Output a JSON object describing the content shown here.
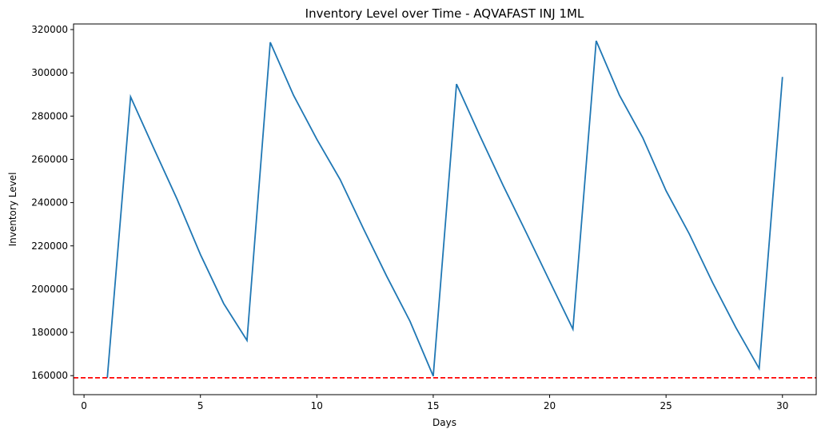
{
  "chart_data": {
    "type": "line",
    "title": "Inventory Level over Time - AQVAFAST INJ 1ML",
    "x_label": "Days",
    "y_label": "Inventory Level",
    "x": [
      1,
      2,
      3,
      4,
      5,
      6,
      7,
      8,
      9,
      10,
      11,
      12,
      13,
      14,
      15,
      16,
      17,
      18,
      19,
      20,
      21,
      22,
      23,
      24,
      25,
      26,
      27,
      28,
      29,
      30
    ],
    "series": [
      {
        "name": "Inventory Level",
        "color": "#1f77b4",
        "values": [
          159000,
          288900,
          265000,
          241500,
          216000,
          193300,
          176300,
          314100,
          289600,
          269300,
          250700,
          228000,
          206000,
          185200,
          159800,
          294800,
          271000,
          248000,
          226000,
          203700,
          181500,
          314800,
          289600,
          270000,
          245500,
          225500,
          203000,
          182200,
          163300,
          298100
        ]
      }
    ],
    "hline": {
      "value": 159000,
      "color": "#ff0000"
    },
    "xlim": [
      -0.45,
      31.45
    ],
    "xticks": [
      0,
      5,
      10,
      15,
      20,
      25,
      30
    ],
    "ylim": [
      151210,
      322590
    ],
    "yticks": [
      160000,
      180000,
      200000,
      220000,
      240000,
      260000,
      280000,
      300000,
      320000
    ]
  }
}
